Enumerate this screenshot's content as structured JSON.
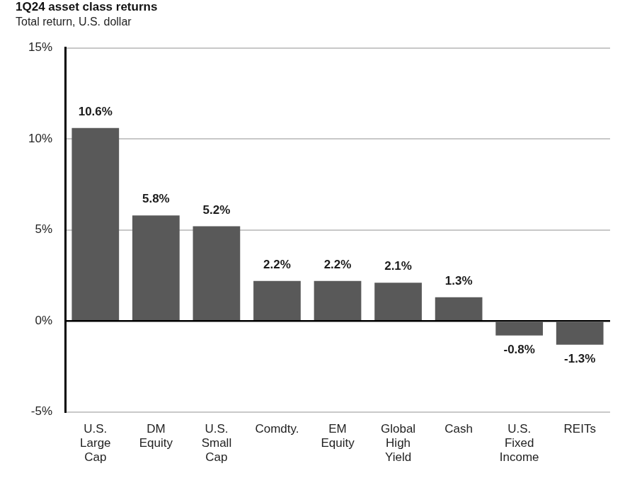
{
  "chart_data": {
    "type": "bar",
    "title": "1Q24 asset class returns",
    "subtitle": "Total return, U.S. dollar",
    "categories": [
      "U.S. Large Cap",
      "DM Equity",
      "U.S. Small Cap",
      "Comdty.",
      "EM Equity",
      "Global High Yield",
      "Cash",
      "U.S. Fixed Income",
      "REITs"
    ],
    "values": [
      10.6,
      5.8,
      5.2,
      2.2,
      2.2,
      2.1,
      1.3,
      -0.8,
      -1.3
    ],
    "value_labels": [
      "10.6%",
      "5.8%",
      "5.2%",
      "2.2%",
      "2.2%",
      "2.1%",
      "1.3%",
      "-0.8%",
      "-1.3%"
    ],
    "color": "#595959",
    "ylim": [
      -5,
      15
    ],
    "yticks": [
      {
        "value": -5,
        "label": "-5%"
      },
      {
        "value": 0,
        "label": "0%"
      },
      {
        "value": 5,
        "label": "5%"
      },
      {
        "value": 10,
        "label": "10%"
      },
      {
        "value": 15,
        "label": "15%"
      }
    ],
    "grid": true,
    "data_labels": true
  }
}
